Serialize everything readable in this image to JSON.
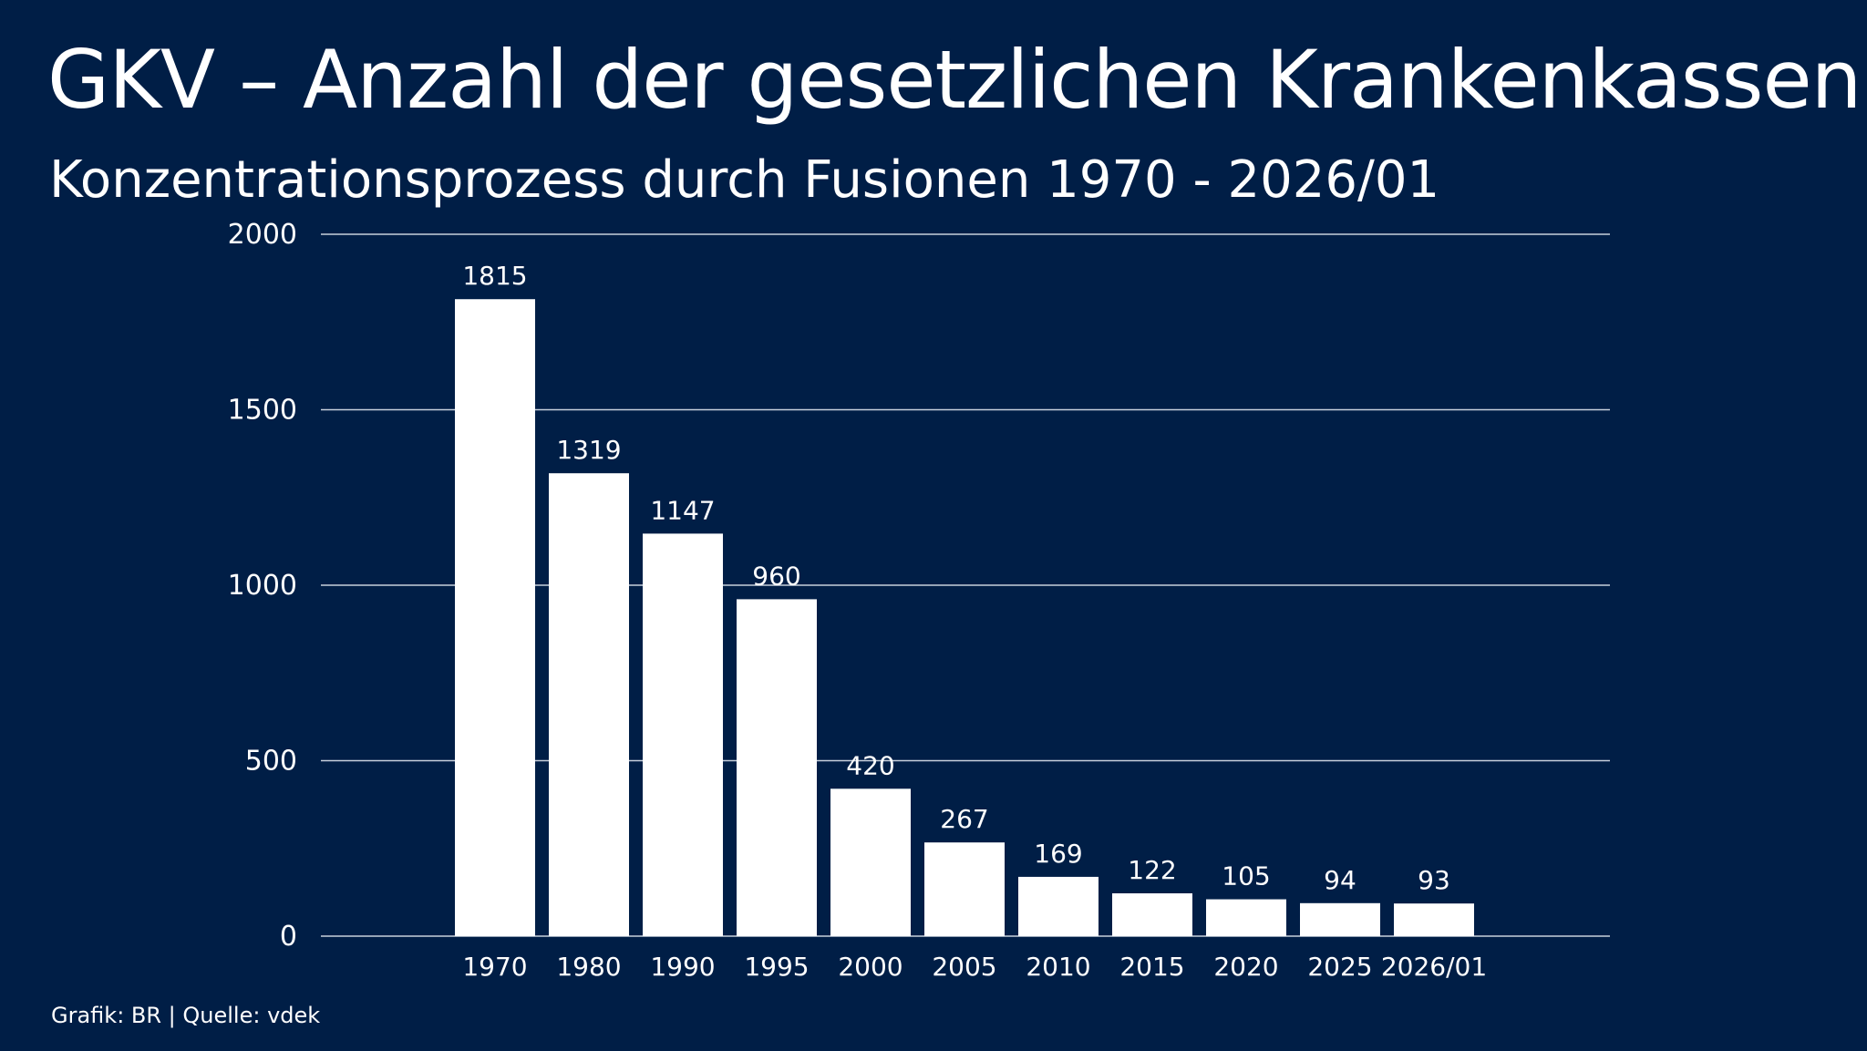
{
  "header": {
    "title": "GKV – Anzahl der gesetzlichen Krankenkassen",
    "subtitle": "Konzentrationsprozess durch Fusionen 1970 - 2026/01"
  },
  "footer": {
    "source": "Grafik: BR | Quelle: vdek"
  },
  "colors": {
    "background": "#001e46",
    "bar": "#ffffff",
    "grid": "#c8d0dc",
    "text": "#ffffff"
  },
  "chart_data": {
    "type": "bar",
    "title": "GKV – Anzahl der gesetzlichen Krankenkassen",
    "subtitle": "Konzentrationsprozess durch Fusionen 1970 - 2026/01",
    "categories": [
      "1970",
      "1980",
      "1990",
      "1995",
      "2000",
      "2005",
      "2010",
      "2015",
      "2020",
      "2025",
      "2026/01"
    ],
    "values": [
      1815,
      1319,
      1147,
      960,
      420,
      267,
      169,
      122,
      105,
      94,
      93
    ],
    "data_labels": [
      "1815",
      "1319",
      "1147",
      "960",
      "420",
      "267",
      "169",
      "122",
      "105",
      "94",
      "93"
    ],
    "yticks": [
      0,
      500,
      1000,
      1500,
      2000
    ],
    "ylim": [
      0,
      2000
    ],
    "xlabel": "",
    "ylabel": "",
    "grid": true,
    "legend": "none"
  }
}
